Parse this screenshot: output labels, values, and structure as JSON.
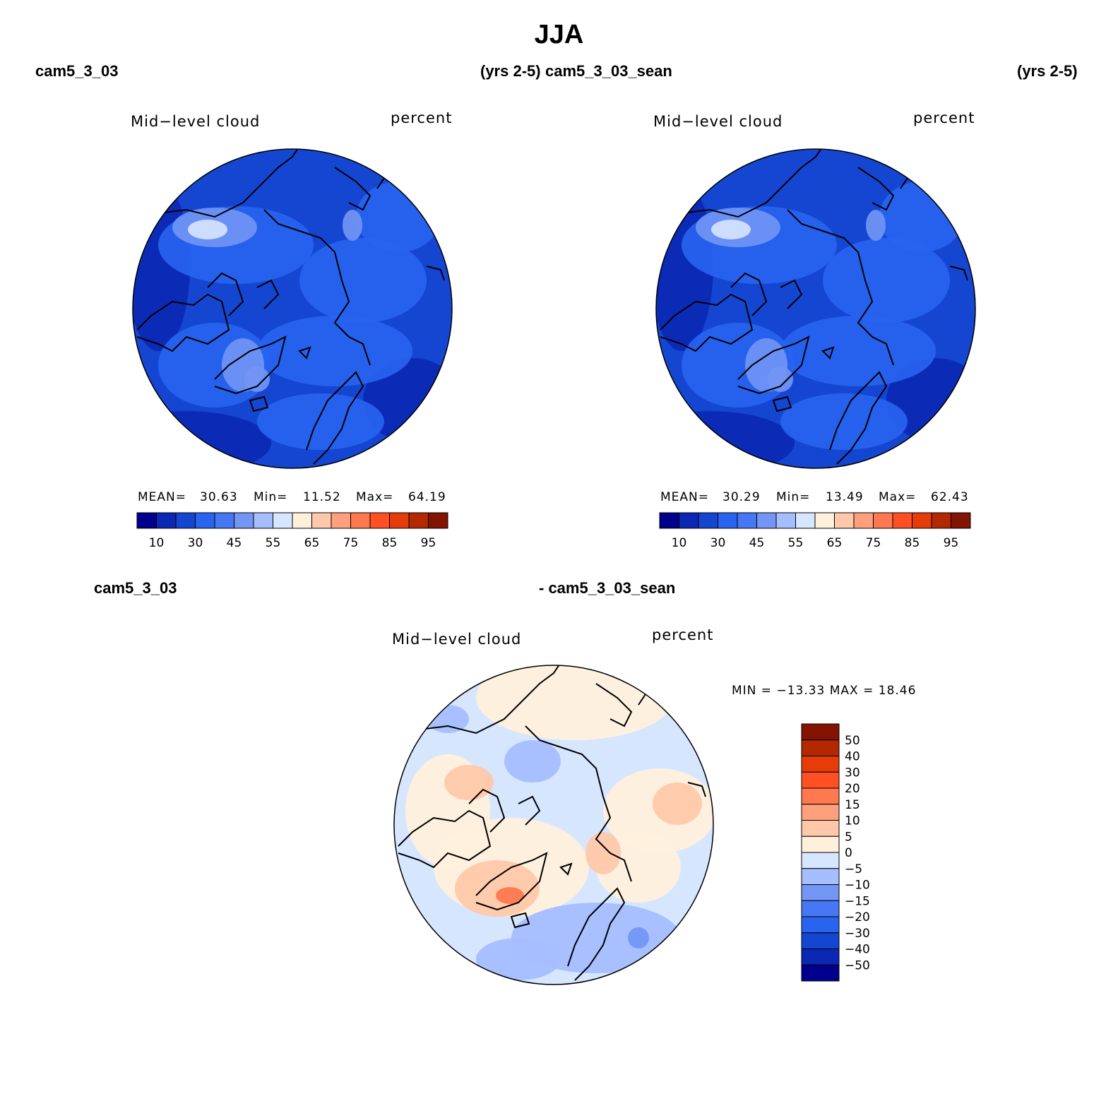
{
  "title": "JJA",
  "header": {
    "left_case": "cam5_3_03",
    "left_years": "(yrs 2-5)",
    "right_case": "cam5_3_03_sean",
    "right_years": "(yrs 2-5)"
  },
  "diff_header": {
    "left": "cam5_3_03",
    "right": "- cam5_3_03_sean"
  },
  "panels": [
    {
      "variable": "Mid−level cloud",
      "units": "percent",
      "mean_label": "MEAN=",
      "mean": "30.63",
      "min_label": "Min=",
      "min": "11.52",
      "max_label": "Max=",
      "max": "64.19"
    },
    {
      "variable": "Mid−level cloud",
      "units": "percent",
      "mean_label": "MEAN=",
      "mean": "30.29",
      "min_label": "Min=",
      "min": "13.49",
      "max_label": "Max=",
      "max": "62.43"
    }
  ],
  "diff_panel": {
    "variable": "Mid−level cloud",
    "units": "percent",
    "minmax": "MIN = −13.33 MAX =   18.46"
  },
  "colorbar": {
    "labels": [
      "10",
      "30",
      "45",
      "55",
      "65",
      "75",
      "85",
      "95"
    ],
    "colors": [
      "#00008c",
      "#0a28b4",
      "#1446d2",
      "#2864f0",
      "#4678f5",
      "#7396f5",
      "#a5beff",
      "#d7e6ff",
      "#fff0dc",
      "#ffc8aa",
      "#ffa07d",
      "#ff7850",
      "#ff5023",
      "#e63c0a",
      "#b42800",
      "#821400"
    ]
  },
  "diff_colorbar": {
    "labels": [
      "50",
      "40",
      "30",
      "20",
      "15",
      "10",
      "5",
      "0",
      "−5",
      "−10",
      "−15",
      "−20",
      "−30",
      "−40",
      "−50"
    ],
    "colors": [
      "#821400",
      "#b42800",
      "#e63c0a",
      "#ff5023",
      "#ff7850",
      "#ffa07d",
      "#ffc8aa",
      "#fff0dc",
      "#d7e6ff",
      "#a5beff",
      "#7396f5",
      "#4678f5",
      "#2864f0",
      "#1446d2",
      "#0a28b4",
      "#00008c"
    ]
  },
  "map_colors": {
    "field_base": "#1446d2",
    "field_mid": "#2864f0",
    "field_dark": "#0a28b4",
    "field_light": "#7396f5",
    "field_pale": "#d7e6ff",
    "diff_base": "#d7e6ff",
    "diff_warm": "#fff0dc",
    "diff_warmer": "#ffc8aa",
    "diff_cool": "#a5beff",
    "diff_cooler": "#7396f5",
    "diff_hot": "#ff7850"
  }
}
